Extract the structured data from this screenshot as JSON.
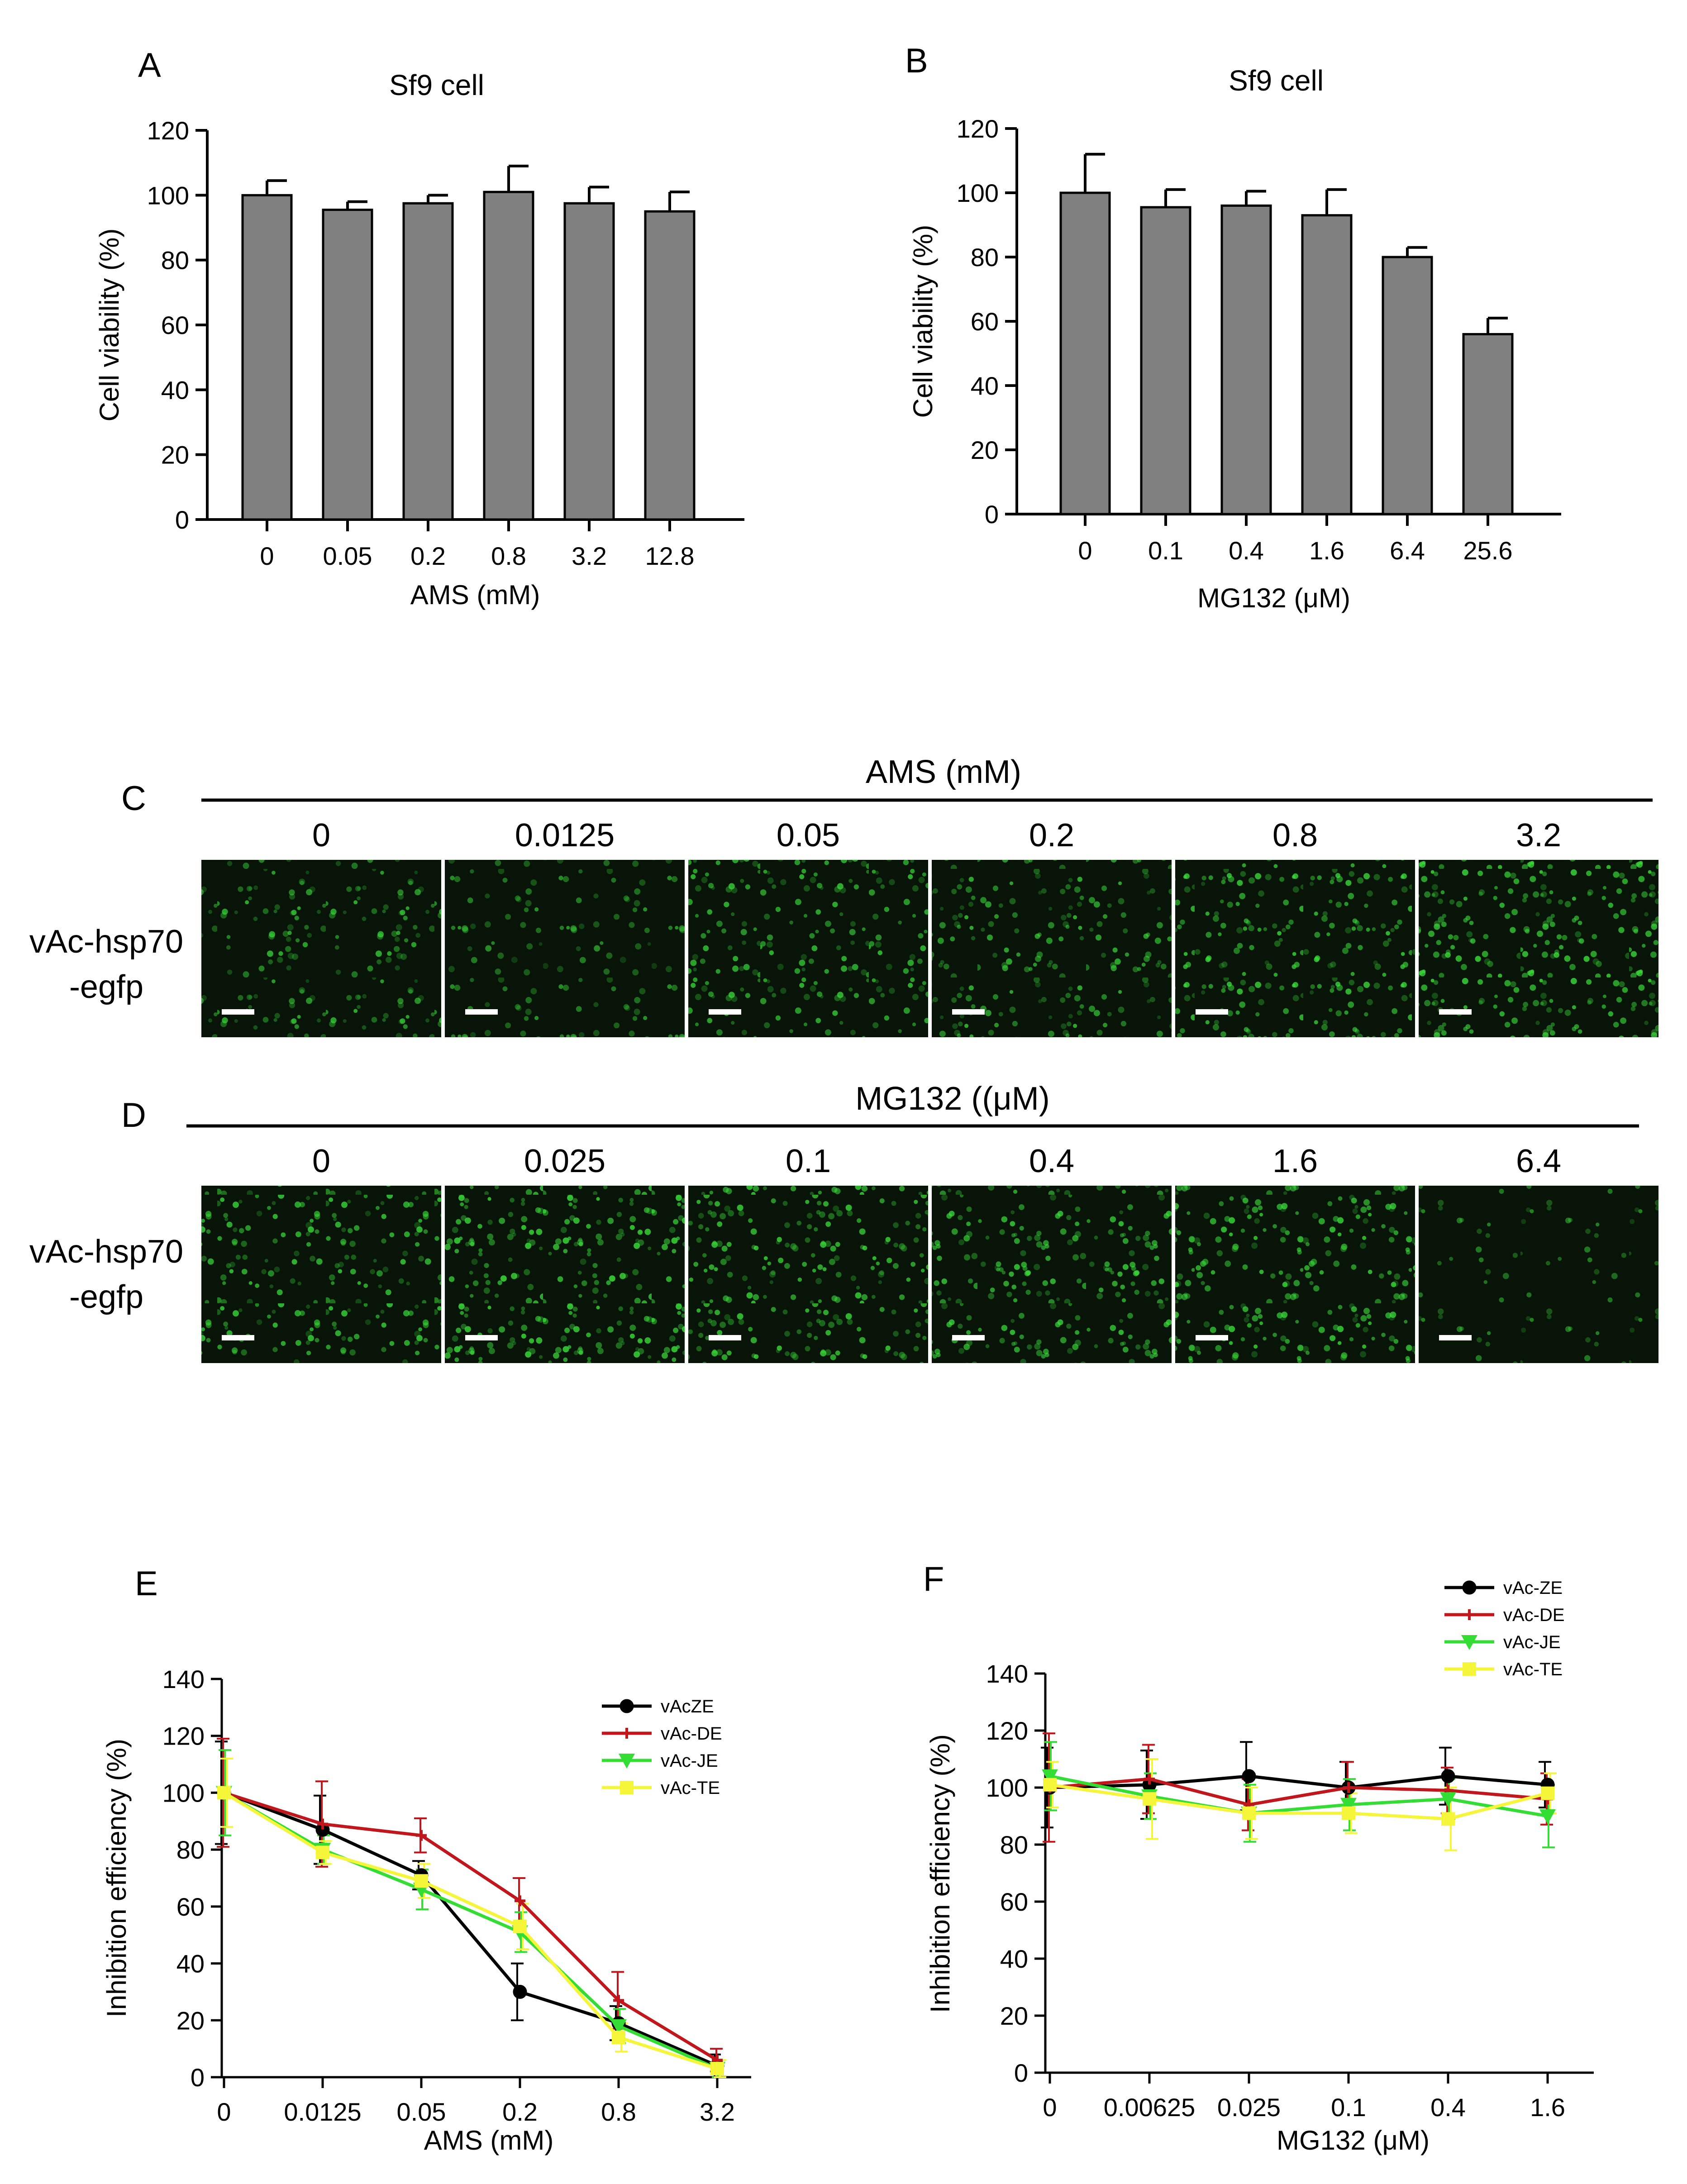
{
  "chart_data": [
    {
      "panel": "A",
      "type": "bar",
      "title": "Sf9 cell",
      "xlabel": "AMS (mM)",
      "ylabel": "Cell viability (%)",
      "categories": [
        "0",
        "0.05",
        "0.2",
        "0.8",
        "3.2",
        "12.8"
      ],
      "values": [
        100,
        95.5,
        97.5,
        101,
        97.5,
        95
      ],
      "errors": [
        4.5,
        2.5,
        2.5,
        8,
        5,
        6
      ],
      "ylim": [
        0,
        120
      ],
      "yticks": [
        "0",
        "20",
        "40",
        "60",
        "80",
        "100",
        "120"
      ],
      "bar_color": "#808080"
    },
    {
      "panel": "B",
      "type": "bar",
      "title": "Sf9 cell",
      "xlabel": "MG132 (μM)",
      "ylabel": "Cell viability (%)",
      "categories": [
        "0",
        "0.1",
        "0.4",
        "1.6",
        "6.4",
        "25.6"
      ],
      "values": [
        100,
        95.5,
        96,
        93,
        80,
        56
      ],
      "errors": [
        12,
        5.5,
        4.5,
        8,
        3,
        5
      ],
      "ylim": [
        0,
        120
      ],
      "yticks": [
        "0",
        "20",
        "40",
        "60",
        "80",
        "100",
        "120"
      ],
      "bar_color": "#808080"
    },
    {
      "panel": "E",
      "type": "line",
      "xlabel": "AMS (mM)",
      "ylabel": "Inhibition efficiency (%)",
      "categories": [
        "0",
        "0.0125",
        "0.05",
        "0.2",
        "0.8",
        "3.2"
      ],
      "ylim": [
        0,
        140
      ],
      "yticks": [
        "0",
        "20",
        "40",
        "60",
        "80",
        "100",
        "120",
        "140"
      ],
      "legend_position": "top-right",
      "series": [
        {
          "name": "vAcZE",
          "color": "#000000",
          "marker": "circle",
          "values": [
            100,
            87,
            71,
            30,
            19,
            4
          ],
          "errors": [
            18,
            12,
            5,
            10,
            6,
            4
          ]
        },
        {
          "name": "vAc-DE",
          "color": "#c0161c",
          "marker": "plus",
          "values": [
            100,
            89,
            85,
            62,
            27,
            6
          ],
          "errors": [
            19,
            15,
            6,
            8,
            10,
            4
          ]
        },
        {
          "name": "vAc-JE",
          "color": "#33dd33",
          "marker": "triangle-down",
          "values": [
            100,
            80,
            66,
            51,
            18,
            3
          ],
          "errors": [
            15,
            5,
            7,
            7,
            6,
            3
          ]
        },
        {
          "name": "vAc-TE",
          "color": "#f5f53a",
          "marker": "square",
          "values": [
            100,
            79,
            69,
            53,
            14,
            3
          ],
          "errors": [
            12,
            4,
            6,
            8,
            5,
            3
          ]
        }
      ]
    },
    {
      "panel": "F",
      "type": "line",
      "xlabel": "MG132 (μM)",
      "ylabel": "Inhibition efficiency (%)",
      "categories": [
        "0",
        "0.00625",
        "0.025",
        "0.1",
        "0.4",
        "1.6"
      ],
      "ylim": [
        0,
        140
      ],
      "yticks": [
        "0",
        "20",
        "40",
        "60",
        "80",
        "100",
        "120",
        "140"
      ],
      "legend_position": "top-right",
      "series": [
        {
          "name": "vAc-ZE",
          "color": "#000000",
          "marker": "circle",
          "values": [
            100,
            101,
            104,
            100,
            104,
            101
          ],
          "errors": [
            14,
            12,
            12,
            9,
            10,
            8
          ]
        },
        {
          "name": "vAc-DE",
          "color": "#c0161c",
          "marker": "plus",
          "values": [
            100,
            103,
            94,
            100,
            99,
            96
          ],
          "errors": [
            19,
            12,
            9,
            9,
            8,
            9
          ]
        },
        {
          "name": "vAc-JE",
          "color": "#33dd33",
          "marker": "triangle-down",
          "values": [
            104,
            97,
            91,
            94,
            96,
            90
          ],
          "errors": [
            12,
            8,
            10,
            9,
            7,
            11
          ]
        },
        {
          "name": "vAc-TE",
          "color": "#f5f53a",
          "marker": "square",
          "values": [
            101,
            96,
            91,
            91,
            89,
            98
          ],
          "errors": [
            8,
            14,
            9,
            7,
            11,
            7
          ]
        }
      ]
    }
  ],
  "panels": {
    "A": "A",
    "B": "B",
    "C": "C",
    "D": "D",
    "E": "E",
    "F": "F"
  },
  "micrographs": {
    "C": {
      "header": "AMS (mM)",
      "columns": [
        "0",
        "0.0125",
        "0.05",
        "0.2",
        "0.8",
        "3.2"
      ],
      "row_label_1": "vAc-hsp70",
      "row_label_2": "-egfp",
      "brightness": [
        0.75,
        0.5,
        0.8,
        0.75,
        0.9,
        1.0
      ]
    },
    "D": {
      "header": "MG132 ((μM)",
      "columns": [
        "0",
        "0.025",
        "0.1",
        "0.4",
        "1.6",
        "6.4"
      ],
      "row_label_1": "vAc-hsp70",
      "row_label_2": "-egfp",
      "brightness": [
        0.85,
        1.0,
        0.9,
        0.9,
        0.9,
        0.3
      ]
    }
  },
  "colors": {
    "cell_green": "#3adb3a",
    "scale_bar": "#ffffff"
  }
}
